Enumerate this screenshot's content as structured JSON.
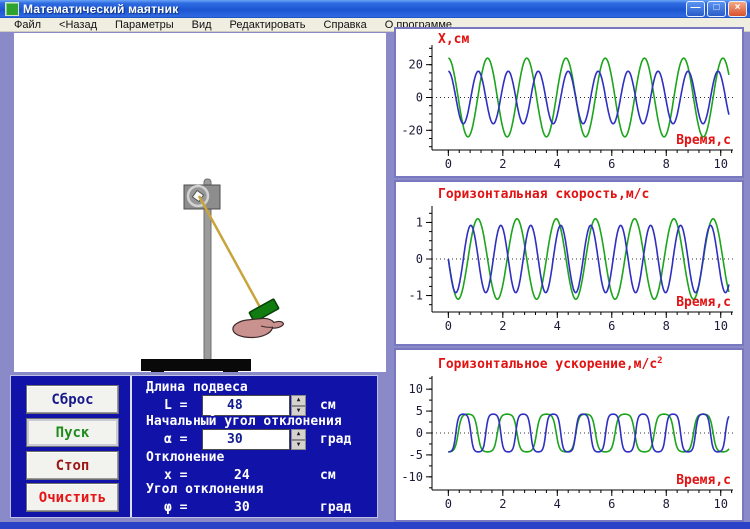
{
  "window": {
    "title": "Математический маятник",
    "buttons": {
      "minimize": "—",
      "maximize": "□",
      "close": "×"
    }
  },
  "menu": {
    "items": [
      "Файл",
      "<Назад",
      "Параметры",
      "Вид",
      "Редактировать",
      "Справка",
      "О программе"
    ]
  },
  "controls": {
    "buttons": [
      {
        "label": "Сброс",
        "color": "#16168c"
      },
      {
        "label": "Пуск",
        "color": "#1d8c1d"
      },
      {
        "label": "Стоп",
        "color": "#9c1414"
      },
      {
        "label": "Очистить",
        "color": "#e61414"
      }
    ],
    "fields": [
      {
        "label": "Длина подвеса",
        "symbol": "L =",
        "value": "48",
        "unit": "см",
        "editable": true
      },
      {
        "label": "Начальный угол отклонения",
        "symbol": "α =",
        "value": "30",
        "unit": "град",
        "editable": true
      },
      {
        "label": "Отклонение",
        "symbol": "x =",
        "value": "24",
        "unit": "см",
        "editable": false
      },
      {
        "label": "Угол отклонения",
        "symbol": "φ =",
        "value": "30",
        "unit": "град",
        "editable": false
      }
    ]
  },
  "icons": {
    "spinner_up": "▲",
    "spinner_down": "▼"
  },
  "colors": {
    "background": "#8a8ac9",
    "panel_blue": "#1113a8",
    "chart_green": "#1ca51c",
    "chart_blue": "#2f2fc0",
    "chart_label_red": "#e11212",
    "string_gold": "#c9a43b",
    "bob_green": "#117d11"
  },
  "chart_data": [
    {
      "type": "line",
      "title": "X,см",
      "xlabel": "Время,с",
      "xlim": [
        -0.6,
        10.45
      ],
      "ylim": [
        -32,
        32
      ],
      "xticks": [
        0,
        2,
        4,
        6,
        8,
        10
      ],
      "yticks": [
        -20,
        0,
        20
      ],
      "x_minor_step": 0.4,
      "y_minor_step": 5,
      "t_end": 10.3,
      "zero_line": true,
      "grid": false,
      "legend": "none",
      "series": [
        {
          "name": "green",
          "color": "#1ca51c",
          "waveform": "cos",
          "amplitude": 24,
          "period": 1.44,
          "phase": 0
        },
        {
          "name": "blue",
          "color": "#2f2fc0",
          "waveform": "cos",
          "amplitude": 16,
          "period": 1.1,
          "phase": 0
        }
      ]
    },
    {
      "type": "line",
      "title": "Горизонтальная скорость,м/с",
      "xlabel": "Время,с",
      "xlim": [
        -0.6,
        10.45
      ],
      "ylim": [
        -1.45,
        1.45
      ],
      "xticks": [
        0,
        2,
        4,
        6,
        8,
        10
      ],
      "yticks": [
        -1,
        0,
        1
      ],
      "x_minor_step": 0.4,
      "y_minor_step": 0.25,
      "t_end": 10.3,
      "zero_line": true,
      "grid": false,
      "legend": "none",
      "series": [
        {
          "name": "green",
          "color": "#1ca51c",
          "waveform": "neg-sin",
          "amplitude": 1.1,
          "period": 1.44,
          "phase": 0
        },
        {
          "name": "blue",
          "color": "#2f2fc0",
          "waveform": "neg-sin",
          "amplitude": 0.92,
          "period": 1.1,
          "phase": 0
        }
      ]
    },
    {
      "type": "line",
      "title": "Горизонтальное ускорение,м/с",
      "title_sup": "2",
      "xlabel": "Время,с",
      "xlim": [
        -0.6,
        10.45
      ],
      "ylim": [
        -13,
        13
      ],
      "xticks": [
        0,
        2,
        4,
        6,
        8,
        10
      ],
      "yticks": [
        -10,
        -5,
        0,
        5,
        10
      ],
      "x_minor_step": 0.4,
      "y_minor_step": 2.5,
      "t_end": 10.3,
      "zero_line": true,
      "grid": false,
      "legend": "none",
      "series": [
        {
          "name": "green",
          "color": "#1ca51c",
          "waveform": "neg-cos",
          "amplitude": 4.3,
          "period": 1.44,
          "phase": 0,
          "shape": "softclip"
        },
        {
          "name": "blue",
          "color": "#2f2fc0",
          "waveform": "neg-cos",
          "amplitude": 4.3,
          "period": 1.1,
          "phase": 0,
          "shape": "softclip"
        }
      ]
    }
  ]
}
